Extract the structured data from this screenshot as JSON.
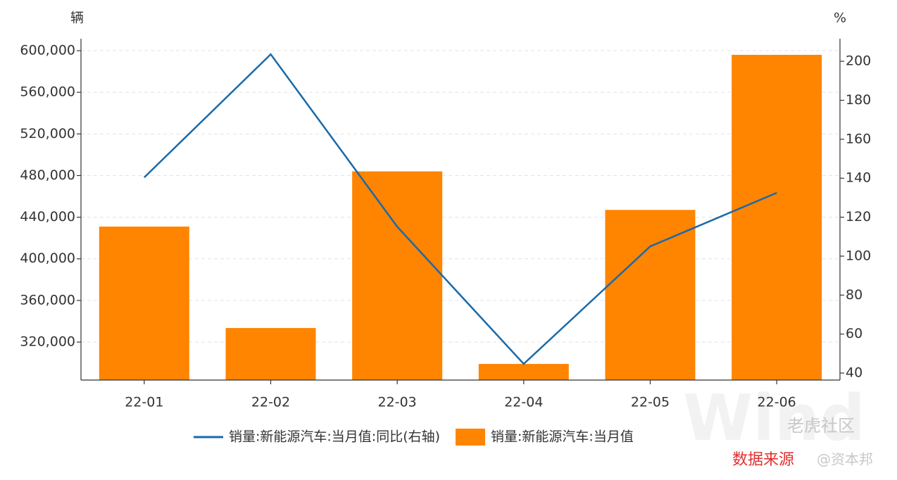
{
  "chart_data": {
    "type": "bar-line",
    "y_label": "辆",
    "y2_label": "%",
    "categories": [
      "22-01",
      "22-02",
      "22-03",
      "22-04",
      "22-05",
      "22-06"
    ],
    "series": [
      {
        "name": "销量:新能源汽车:当月值:同比(右轴)",
        "type": "line",
        "axis": "y2",
        "color": "#1a6aa8",
        "values": [
          140.4,
          203.6,
          115.1,
          44.7,
          105,
          132.5
        ]
      },
      {
        "name": "销量:新能源汽车:当月值",
        "type": "bar",
        "color": "#ff8400",
        "values": [
          431000,
          333500,
          484000,
          299000,
          447000,
          596000
        ]
      }
    ],
    "ylim": [
      283500,
      611500
    ],
    "yticks": [
      {
        "value": 320000,
        "label": "320,000"
      },
      {
        "value": 360000,
        "label": "360,000"
      },
      {
        "value": 400000,
        "label": "400,000"
      },
      {
        "value": 440000,
        "label": "440,000"
      },
      {
        "value": 480000,
        "label": "480,000"
      },
      {
        "value": 520000,
        "label": "520,000"
      },
      {
        "value": 560000,
        "label": "560,000"
      },
      {
        "value": 600000,
        "label": "600,000"
      }
    ],
    "y2lim": [
      36.4,
      211.6
    ],
    "y2ticks": [
      40,
      60,
      80,
      100,
      120,
      140,
      160,
      180,
      200
    ],
    "grid": true,
    "source": "数据来源",
    "watermarks": [
      "Wind",
      "老虎社区",
      "@资本邦"
    ]
  }
}
